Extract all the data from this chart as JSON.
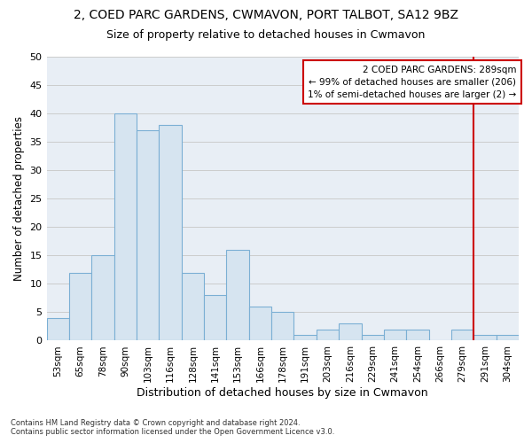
{
  "title": "2, COED PARC GARDENS, CWMAVON, PORT TALBOT, SA12 9BZ",
  "subtitle": "Size of property relative to detached houses in Cwmavon",
  "xlabel": "Distribution of detached houses by size in Cwmavon",
  "ylabel": "Number of detached properties",
  "footer_line1": "Contains HM Land Registry data © Crown copyright and database right 2024.",
  "footer_line2": "Contains public sector information licensed under the Open Government Licence v3.0.",
  "bin_labels": [
    "53sqm",
    "65sqm",
    "78sqm",
    "90sqm",
    "103sqm",
    "116sqm",
    "128sqm",
    "141sqm",
    "153sqm",
    "166sqm",
    "178sqm",
    "191sqm",
    "203sqm",
    "216sqm",
    "229sqm",
    "241sqm",
    "254sqm",
    "266sqm",
    "279sqm",
    "291sqm",
    "304sqm"
  ],
  "bar_values": [
    4,
    12,
    15,
    40,
    37,
    38,
    12,
    8,
    16,
    6,
    5,
    1,
    2,
    3,
    1,
    2,
    2,
    0,
    2,
    1,
    1
  ],
  "bar_color": "#d6e4f0",
  "bar_edge_color": "#7bafd4",
  "annotation_box_text": "2 COED PARC GARDENS: 289sqm\n← 99% of detached houses are smaller (206)\n1% of semi-detached houses are larger (2) →",
  "annotation_box_color": "#ffffff",
  "annotation_box_edge_color": "#cc0000",
  "subject_line_color": "#cc0000",
  "subject_bar_index": 19,
  "ylim": [
    0,
    50
  ],
  "yticks": [
    0,
    5,
    10,
    15,
    20,
    25,
    30,
    35,
    40,
    45,
    50
  ],
  "grid_color": "#cccccc",
  "background_color": "#e8eef5"
}
